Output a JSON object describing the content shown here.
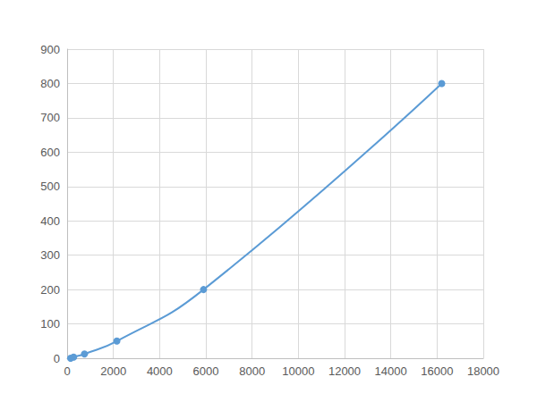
{
  "chart_data": {
    "type": "line",
    "x": [
      150,
      280,
      750,
      2150,
      5900,
      16200
    ],
    "values": [
      0,
      3.125,
      12.5,
      50,
      200,
      800
    ],
    "color": "#5b9bd5",
    "marker": "circle",
    "line_style": "smooth",
    "xlim": [
      0,
      18000
    ],
    "xticks": [
      0,
      2000,
      4000,
      6000,
      8000,
      10000,
      12000,
      14000,
      16000,
      18000
    ],
    "ylim": [
      0,
      900
    ],
    "yticks": [
      0,
      100,
      200,
      300,
      400,
      500,
      600,
      700,
      800,
      900
    ],
    "grid": true
  }
}
